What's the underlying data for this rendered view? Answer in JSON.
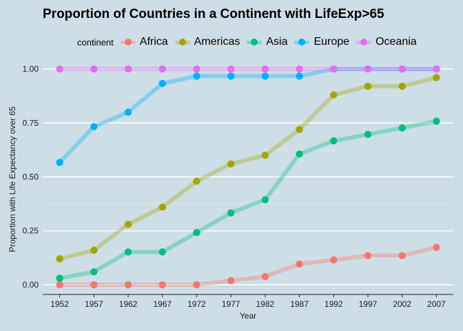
{
  "chart_data": {
    "type": "line",
    "title": "Proportion of Countries in a Continent with LifeExp>65",
    "xlabel": "Year",
    "ylabel": "Proportion with Life Expectancy over 65",
    "legend_title": "continent",
    "legend_position": "top",
    "grid": true,
    "ylim": [
      -0.045,
      1.045
    ],
    "yticks": [
      0,
      0.25,
      0.5,
      0.75,
      1
    ],
    "ytick_labels": [
      "0.00",
      "0.25",
      "0.50",
      "0.75",
      "1.00"
    ],
    "x": [
      1952,
      1957,
      1962,
      1967,
      1972,
      1977,
      1982,
      1987,
      1992,
      1997,
      2002,
      2007
    ],
    "series": [
      {
        "name": "Africa",
        "color": "#F8766D",
        "values": [
          0,
          0,
          0,
          0,
          0,
          0.019,
          0.038,
          0.096,
          0.115,
          0.135,
          0.135,
          0.173
        ]
      },
      {
        "name": "Americas",
        "color": "#A3A500",
        "values": [
          0.12,
          0.16,
          0.28,
          0.36,
          0.48,
          0.56,
          0.6,
          0.72,
          0.88,
          0.92,
          0.92,
          0.96
        ]
      },
      {
        "name": "Asia",
        "color": "#00BF7D",
        "values": [
          0.03,
          0.06,
          0.152,
          0.152,
          0.242,
          0.333,
          0.394,
          0.606,
          0.667,
          0.697,
          0.727,
          0.758
        ]
      },
      {
        "name": "Europe",
        "color": "#00B0F6",
        "values": [
          0.567,
          0.733,
          0.8,
          0.933,
          0.967,
          0.967,
          0.967,
          0.967,
          1,
          1,
          1,
          1
        ]
      },
      {
        "name": "Oceania",
        "color": "#E76BF3",
        "values": [
          1,
          1,
          1,
          1,
          1,
          1,
          1,
          1,
          1,
          1,
          1,
          1
        ]
      }
    ]
  }
}
